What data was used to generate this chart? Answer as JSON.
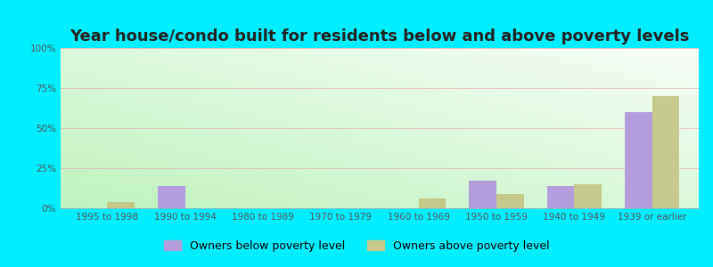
{
  "title": "Year house/condo built for residents below and above poverty levels",
  "categories": [
    "1995 to 1998",
    "1990 to 1994",
    "1980 to 1989",
    "1970 to 1979",
    "1960 to 1969",
    "1950 to 1959",
    "1940 to 1949",
    "1939 or earlier"
  ],
  "below_poverty": [
    0,
    14,
    0,
    0,
    0,
    17,
    14,
    60
  ],
  "above_poverty": [
    4,
    0,
    0,
    0,
    6,
    9,
    15,
    70
  ],
  "below_color": "#b39ddb",
  "above_color": "#c5c98a",
  "outer_background": "#00eeff",
  "ylabel_ticks": [
    0,
    25,
    50,
    75,
    100
  ],
  "ylabel_labels": [
    "0%",
    "25%",
    "50%",
    "75%",
    "100%"
  ],
  "ylim": [
    0,
    100
  ],
  "bar_width": 0.35,
  "legend_below_label": "Owners below poverty level",
  "legend_above_label": "Owners above poverty level",
  "title_fontsize": 13,
  "tick_fontsize": 7.5,
  "legend_fontsize": 9,
  "grid_color": "#e8b0c0",
  "bg_color_top_right": "#f8fdf8",
  "bg_color_bottom_left": "#c8efc8"
}
